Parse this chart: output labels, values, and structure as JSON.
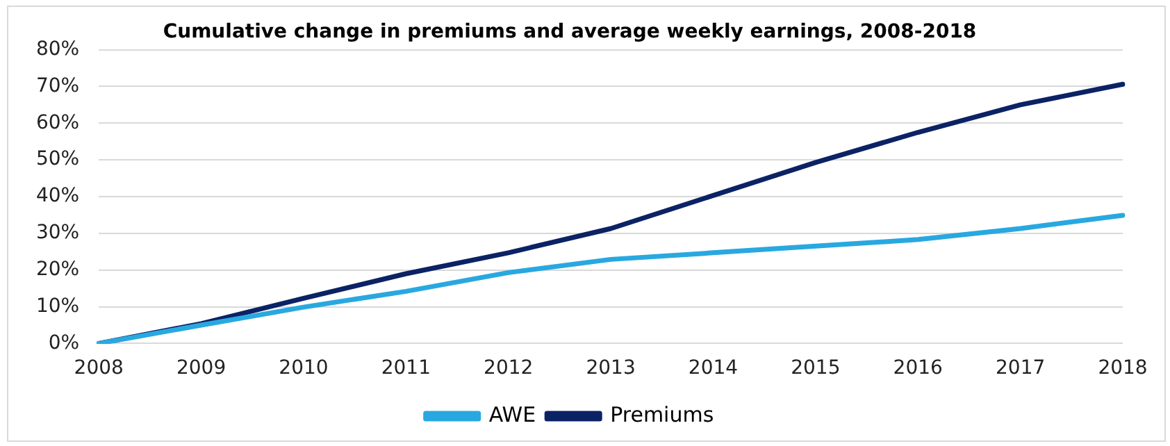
{
  "chart_data": {
    "type": "line",
    "title": "Cumulative change in premiums and average weekly earnings, 2008-2018",
    "categories": [
      "2008",
      "2009",
      "2010",
      "2011",
      "2012",
      "2013",
      "2014",
      "2015",
      "2016",
      "2017",
      "2018"
    ],
    "series": [
      {
        "name": "AWE",
        "color": "#29a8e0",
        "values": [
          0,
          5,
          9.9,
          14.2,
          19.3,
          22.9,
          24.7,
          26.5,
          28.3,
          31.3,
          34.9
        ]
      },
      {
        "name": "Premiums",
        "color": "#0b2265",
        "values": [
          0,
          5.4,
          12.3,
          19,
          24.7,
          31.3,
          40.3,
          49.3,
          57.5,
          65,
          70.6
        ]
      }
    ],
    "ylim": [
      0,
      80
    ],
    "yticks": [
      {
        "value": 0,
        "label": "0%"
      },
      {
        "value": 10,
        "label": "10%"
      },
      {
        "value": 20,
        "label": "20%"
      },
      {
        "value": 30,
        "label": "30%"
      },
      {
        "value": 40,
        "label": "40%"
      },
      {
        "value": 50,
        "label": "50%"
      },
      {
        "value": 60,
        "label": "60%"
      },
      {
        "value": 70,
        "label": "70%"
      },
      {
        "value": 80,
        "label": "80%"
      }
    ],
    "grid": "y",
    "legend": "bottom",
    "marker": "none",
    "line_style": "solid"
  }
}
